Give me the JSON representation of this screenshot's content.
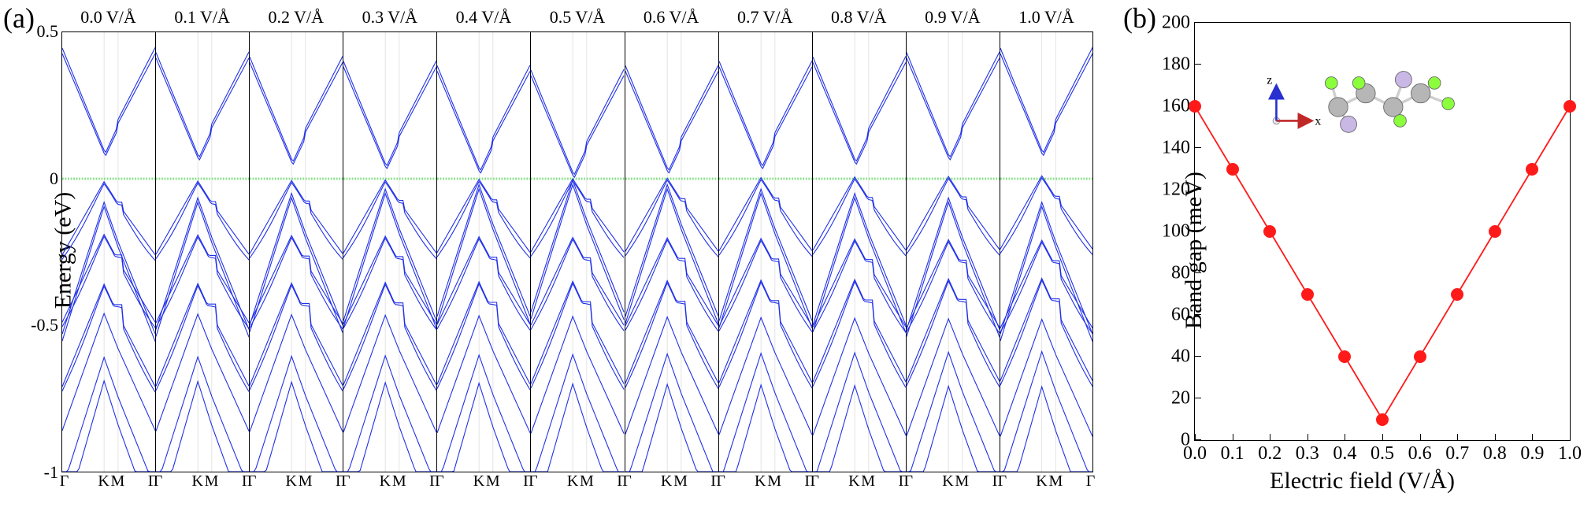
{
  "panelA": {
    "label": "(a)",
    "ylabel": "Energy (eV)",
    "ylim": [
      -1.0,
      0.5
    ],
    "yticks": [
      -1,
      -0.5,
      0,
      0.5
    ],
    "kpath_labels": [
      "Γ",
      "K",
      "M",
      "Γ"
    ],
    "kpath_positions": [
      0.0,
      0.45,
      0.6,
      1.0
    ],
    "fermi_line_color": "#7fe07f",
    "band_color": "#2030e8",
    "gridline_color": "#d8d8d8",
    "titles": [
      "0.0 V/Å",
      "0.1 V/Å",
      "0.2 V/Å",
      "0.3 V/Å",
      "0.4 V/Å",
      "0.5 V/Å",
      "0.6 V/Å",
      "0.7 V/Å",
      "0.8 V/Å",
      "0.9 V/Å",
      "1.0 V/Å"
    ],
    "label_fontsize": 30,
    "tick_fontsize": 22
  },
  "panelB": {
    "label": "(b)",
    "ylabel": "Band gap (meV)",
    "xlabel": "Electric field (V/Å)",
    "xlim": [
      0.0,
      1.0
    ],
    "ylim": [
      0,
      200
    ],
    "xtick_step": 0.1,
    "ytick_step": 20,
    "line_color": "#ff1a1a",
    "marker_color": "#ff1a1a",
    "marker_size": 8,
    "line_width": 1.8,
    "data": {
      "x": [
        0.0,
        0.1,
        0.2,
        0.3,
        0.4,
        0.5,
        0.6,
        0.7,
        0.8,
        0.9,
        1.0
      ],
      "y": [
        160,
        130,
        100,
        70,
        40,
        10,
        40,
        70,
        100,
        130,
        160
      ]
    },
    "inset_axes": {
      "x_arrow_color": "#c02828",
      "z_arrow_color": "#2830d0",
      "x_label": "x",
      "z_label": "z"
    },
    "inset_atoms": {
      "colors": {
        "A": "#b6b6b6",
        "B": "#8cff3c",
        "C": "#c9b7e6"
      },
      "bond_color": "#cfcfcf"
    },
    "label_fontsize": 30,
    "tick_fontsize": 24
  }
}
